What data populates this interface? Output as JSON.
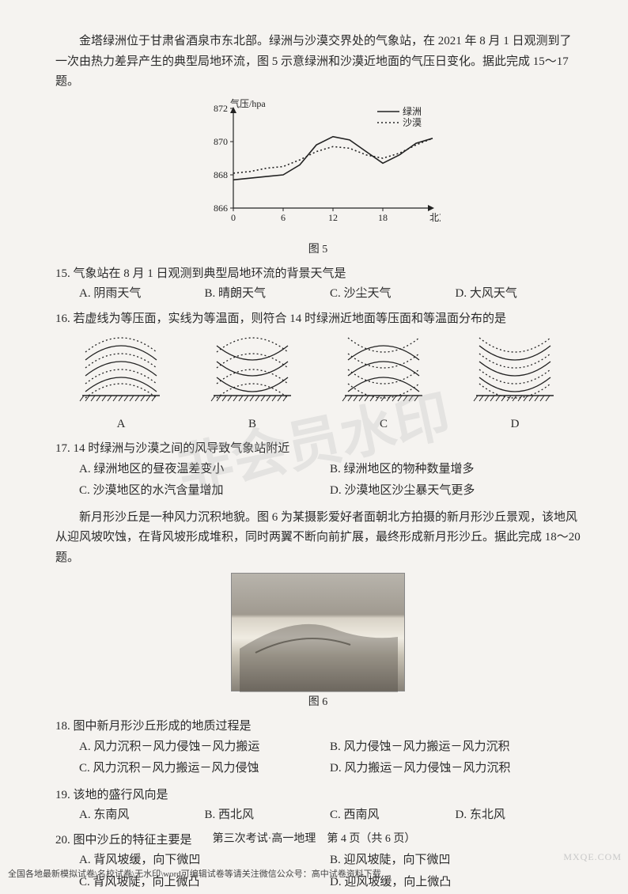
{
  "passage1": {
    "text": "金塔绿洲位于甘肃省酒泉市东北部。绿洲与沙漠交界处的气象站，在 2021 年 8 月 1 日观测到了一次由热力差异产生的典型局地环流，图 5 示意绿洲和沙漠近地面的气压日变化。据此完成 15～17 题。"
  },
  "chart5": {
    "type": "line",
    "label": "图 5",
    "y_axis_label": "气压/hpa",
    "x_axis_label": "北京时间",
    "x_ticks": [
      0,
      6,
      12,
      18
    ],
    "y_ticks": [
      866,
      868,
      870,
      872
    ],
    "ylim": [
      866,
      872
    ],
    "xlim": [
      0,
      24
    ],
    "legend": [
      {
        "name": "绿洲",
        "style": "solid",
        "color": "#222222"
      },
      {
        "name": "沙漠",
        "style": "dotted",
        "color": "#222222"
      }
    ],
    "series_oasis": [
      [
        0,
        867.7
      ],
      [
        2,
        867.8
      ],
      [
        4,
        867.9
      ],
      [
        6,
        868.0
      ],
      [
        8,
        868.6
      ],
      [
        10,
        869.8
      ],
      [
        12,
        870.3
      ],
      [
        14,
        870.1
      ],
      [
        16,
        869.4
      ],
      [
        18,
        868.7
      ],
      [
        20,
        869.2
      ],
      [
        22,
        869.9
      ],
      [
        24,
        870.2
      ]
    ],
    "series_desert": [
      [
        0,
        868.1
      ],
      [
        2,
        868.2
      ],
      [
        4,
        868.4
      ],
      [
        6,
        868.5
      ],
      [
        8,
        868.9
      ],
      [
        10,
        869.4
      ],
      [
        12,
        869.7
      ],
      [
        14,
        869.6
      ],
      [
        16,
        869.2
      ],
      [
        18,
        869.0
      ],
      [
        20,
        869.3
      ],
      [
        22,
        869.8
      ],
      [
        24,
        870.2
      ]
    ],
    "line_width": 1.6,
    "background": "#f5f3f0",
    "axis_color": "#222222",
    "font_size_axis": 12
  },
  "q15": {
    "stem": "15. 气象站在 8 月 1 日观测到典型局地环流的背景天气是",
    "A": "A. 阴雨天气",
    "B": "B. 晴朗天气",
    "C": "C. 沙尘天气",
    "D": "D. 大风天气"
  },
  "q16": {
    "stem": "16. 若虚线为等压面，实线为等温面，则符合 14 时绿洲近地面等压面和等温面分布的是",
    "diagrams": {
      "A": {
        "solid_curve": "concave_up",
        "dotted_curve": "concave_up"
      },
      "B": {
        "solid_curve": "convex_up",
        "dotted_curve": "concave_up"
      },
      "C": {
        "solid_curve": "concave_up",
        "dotted_curve": "convex_up"
      },
      "D": {
        "solid_curve": "convex_up",
        "dotted_curve": "convex_up"
      }
    },
    "labels": {
      "A": "A",
      "B": "B",
      "C": "C",
      "D": "D"
    },
    "line_color": "#222222",
    "hatch_color": "#222222"
  },
  "q17": {
    "stem": "17. 14 时绿洲与沙漠之间的风导致气象站附近",
    "A": "A. 绿洲地区的昼夜温差变小",
    "B": "B. 绿洲地区的物种数量增多",
    "C": "C. 沙漠地区的水汽含量增加",
    "D": "D. 沙漠地区沙尘暴天气更多"
  },
  "passage2": {
    "text": "新月形沙丘是一种风力沉积地貌。图 6 为某摄影爱好者面朝北方拍摄的新月形沙丘景观，该地风从迎风坡吹蚀，在背风坡形成堆积，同时两翼不断向前扩展，最终形成新月形沙丘。据此完成 18～20 题。"
  },
  "fig6": {
    "label": "图 6"
  },
  "q18": {
    "stem": "18. 图中新月形沙丘形成的地质过程是",
    "A": "A. 风力沉积－风力侵蚀－风力搬运",
    "B": "B. 风力侵蚀－风力搬运－风力沉积",
    "C": "C. 风力沉积－风力搬运－风力侵蚀",
    "D": "D. 风力搬运－风力侵蚀－风力沉积"
  },
  "q19": {
    "stem": "19. 该地的盛行风向是",
    "A": "A. 东南风",
    "B": "B. 西北风",
    "C": "C. 西南风",
    "D": "D. 东北风"
  },
  "q20": {
    "stem": "20. 图中沙丘的特征主要是",
    "A": "A. 背风坡缓，向下微凹",
    "B": "B. 迎风坡陡，向下微凹",
    "C": "C. 背风坡陡，向上微凸",
    "D": "D. 迎风坡缓，向上微凸"
  },
  "footer": "第三次考试·高一地理　第 4 页（共 6 页）",
  "bottom_note": "全国各地最新模拟试卷\\名校试卷\\无水印\\word可编辑试卷等请关注微信公众号：高中试卷资料下载",
  "corner_wm": "MXQE.COM",
  "center_wm": "非会员水印"
}
